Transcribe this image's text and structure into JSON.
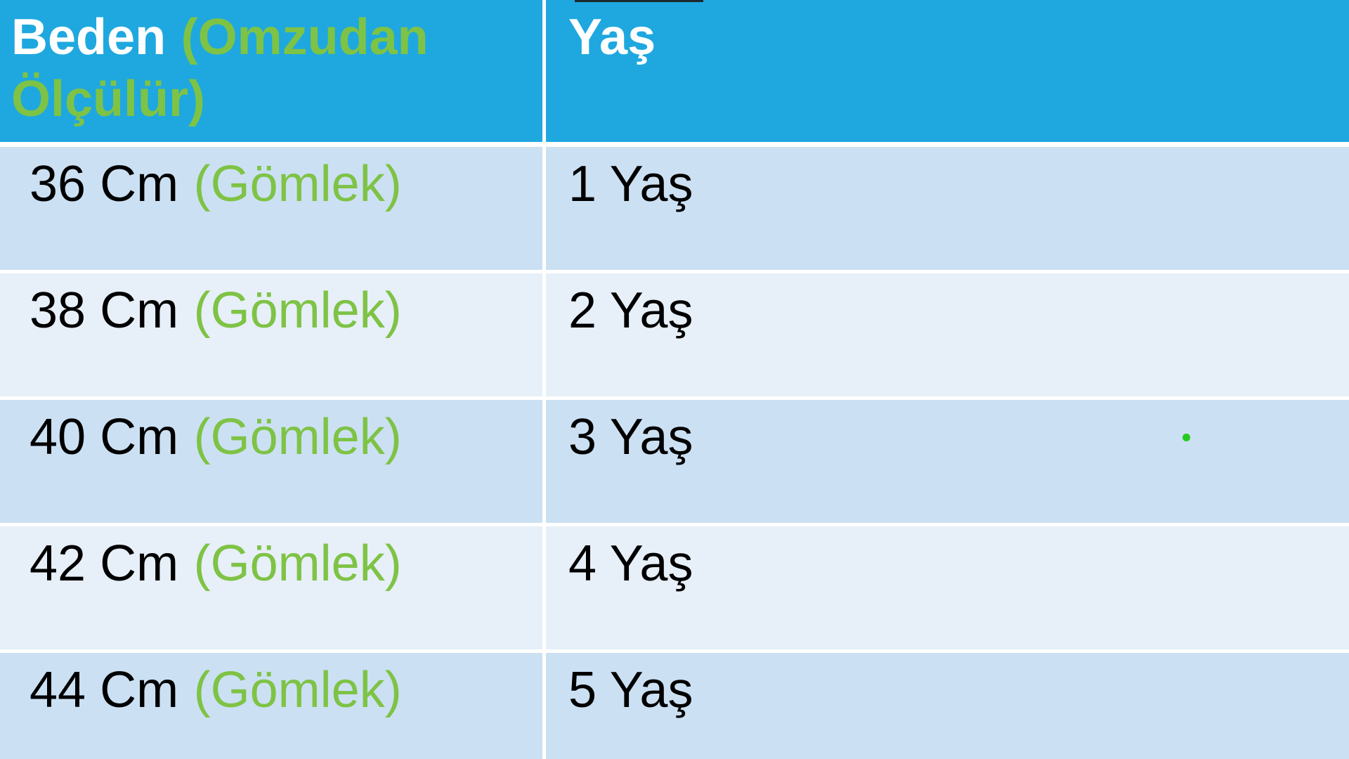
{
  "chart_data": {
    "type": "table",
    "columns": [
      "Beden (Omzudan Ölçülür)",
      "Yaş"
    ],
    "rows": [
      [
        "36 Cm (Gömlek)",
        "1 Yaş"
      ],
      [
        "38 Cm (Gömlek)",
        "2 Yaş"
      ],
      [
        "40 Cm (Gömlek)",
        "3 Yaş"
      ],
      [
        "42 Cm (Gömlek)",
        "4 Yaş"
      ],
      [
        "44 Cm (Gömlek)",
        "5 Yaş"
      ]
    ],
    "layout_hints": "header row blue with white bold text and green accent; data rows alternate light blue shades; top-aligned left-aligned cells"
  },
  "header": {
    "col1_main": "Beden",
    "col1_accent": "(Omzudan Ölçülür)",
    "col2": "Yaş"
  },
  "rows": [
    {
      "size": "36 Cm",
      "size_note": "(Gömlek)",
      "age": "1 Yaş"
    },
    {
      "size": "38 Cm",
      "size_note": "(Gömlek)",
      "age": "2 Yaş"
    },
    {
      "size": "40 Cm",
      "size_note": "(Gömlek)",
      "age": "3 Yaş"
    },
    {
      "size": "42 Cm",
      "size_note": "(Gömlek)",
      "age": "4 Yaş"
    },
    {
      "size": "44 Cm",
      "size_note": "(Gömlek)",
      "age": "5 Yaş"
    }
  ],
  "colors": {
    "header_bg": "#1FA8DF",
    "accent_green": "#7EC345",
    "row_odd_bg": "#CCE0F3",
    "row_even_bg": "#E7EFF8",
    "text_black": "#000000",
    "header_text": "#FFFFFF",
    "dot_green": "#22CB1E",
    "top_line": "#1B1B1B"
  }
}
